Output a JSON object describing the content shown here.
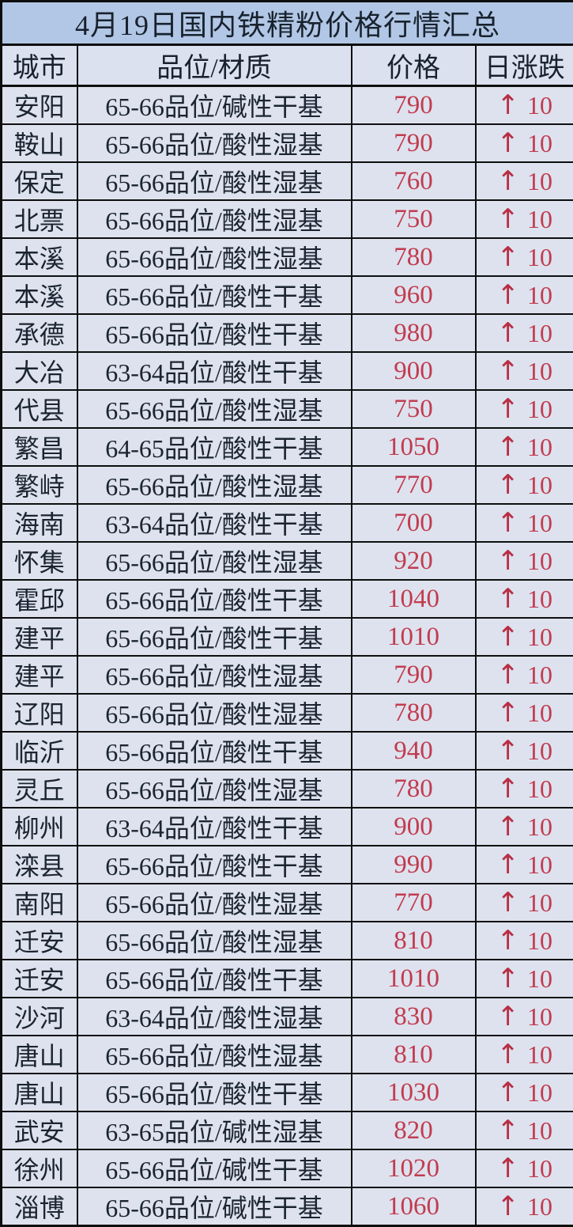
{
  "table": {
    "title": "4月19日国内铁精粉价格行情汇总",
    "columns": [
      "城市",
      "品位/材质",
      "价格",
      "日涨跌"
    ],
    "rows": [
      {
        "city": "安阳",
        "grade": "65-66品位/碱性干基",
        "price": "790",
        "change_arrow": "↑",
        "change": "10"
      },
      {
        "city": "鞍山",
        "grade": "65-66品位/酸性湿基",
        "price": "790",
        "change_arrow": "↑",
        "change": "10"
      },
      {
        "city": "保定",
        "grade": "65-66品位/酸性湿基",
        "price": "760",
        "change_arrow": "↑",
        "change": "10"
      },
      {
        "city": "北票",
        "grade": "65-66品位/酸性湿基",
        "price": "750",
        "change_arrow": "↑",
        "change": "10"
      },
      {
        "city": "本溪",
        "grade": "65-66品位/酸性湿基",
        "price": "780",
        "change_arrow": "↑",
        "change": "10"
      },
      {
        "city": "本溪",
        "grade": "65-66品位/酸性干基",
        "price": "960",
        "change_arrow": "↑",
        "change": "10"
      },
      {
        "city": "承德",
        "grade": "65-66品位/酸性干基",
        "price": "980",
        "change_arrow": "↑",
        "change": "10"
      },
      {
        "city": "大冶",
        "grade": "63-64品位/酸性干基",
        "price": "900",
        "change_arrow": "↑",
        "change": "10"
      },
      {
        "city": "代县",
        "grade": "65-66品位/酸性湿基",
        "price": "750",
        "change_arrow": "↑",
        "change": "10"
      },
      {
        "city": "繁昌",
        "grade": "64-65品位/酸性干基",
        "price": "1050",
        "change_arrow": "↑",
        "change": "10"
      },
      {
        "city": "繁峙",
        "grade": "65-66品位/酸性湿基",
        "price": "770",
        "change_arrow": "↑",
        "change": "10"
      },
      {
        "city": "海南",
        "grade": "63-64品位/酸性干基",
        "price": "700",
        "change_arrow": "↑",
        "change": "10"
      },
      {
        "city": "怀集",
        "grade": "65-66品位/酸性湿基",
        "price": "920",
        "change_arrow": "↑",
        "change": "10"
      },
      {
        "city": "霍邱",
        "grade": "65-66品位/酸性干基",
        "price": "1040",
        "change_arrow": "↑",
        "change": "10"
      },
      {
        "city": "建平",
        "grade": "65-66品位/酸性干基",
        "price": "1010",
        "change_arrow": "↑",
        "change": "10"
      },
      {
        "city": "建平",
        "grade": "65-66品位/酸性湿基",
        "price": "790",
        "change_arrow": "↑",
        "change": "10"
      },
      {
        "city": "辽阳",
        "grade": "65-66品位/酸性湿基",
        "price": "780",
        "change_arrow": "↑",
        "change": "10"
      },
      {
        "city": "临沂",
        "grade": "65-66品位/酸性干基",
        "price": "940",
        "change_arrow": "↑",
        "change": "10"
      },
      {
        "city": "灵丘",
        "grade": "65-66品位/酸性湿基",
        "price": "780",
        "change_arrow": "↑",
        "change": "10"
      },
      {
        "city": "柳州",
        "grade": "63-64品位/酸性干基",
        "price": "900",
        "change_arrow": "↑",
        "change": "10"
      },
      {
        "city": "滦县",
        "grade": "65-66品位/酸性干基",
        "price": "990",
        "change_arrow": "↑",
        "change": "10"
      },
      {
        "city": "南阳",
        "grade": "65-66品位/酸性湿基",
        "price": "770",
        "change_arrow": "↑",
        "change": "10"
      },
      {
        "city": "迁安",
        "grade": "65-66品位/酸性湿基",
        "price": "810",
        "change_arrow": "↑",
        "change": "10"
      },
      {
        "city": "迁安",
        "grade": "65-66品位/酸性干基",
        "price": "1010",
        "change_arrow": "↑",
        "change": "10"
      },
      {
        "city": "沙河",
        "grade": "63-64品位/酸性湿基",
        "price": "830",
        "change_arrow": "↑",
        "change": "10"
      },
      {
        "city": "唐山",
        "grade": "65-66品位/酸性湿基",
        "price": "810",
        "change_arrow": "↑",
        "change": "10"
      },
      {
        "city": "唐山",
        "grade": "65-66品位/酸性干基",
        "price": "1030",
        "change_arrow": "↑",
        "change": "10"
      },
      {
        "city": "武安",
        "grade": "63-65品位/碱性湿基",
        "price": "820",
        "change_arrow": "↑",
        "change": "10"
      },
      {
        "city": "徐州",
        "grade": "65-66品位/碱性干基",
        "price": "1020",
        "change_arrow": "↑",
        "change": "10"
      },
      {
        "city": "淄博",
        "grade": "65-66品位/碱性干基",
        "price": "1060",
        "change_arrow": "↑",
        "change": "10"
      }
    ],
    "colors": {
      "title_bg": "#b2c7e5",
      "cell_bg": "#dde2ee",
      "border": "#0e0e0e",
      "text": "#1b2531",
      "price_red": "#c23b4f"
    }
  }
}
